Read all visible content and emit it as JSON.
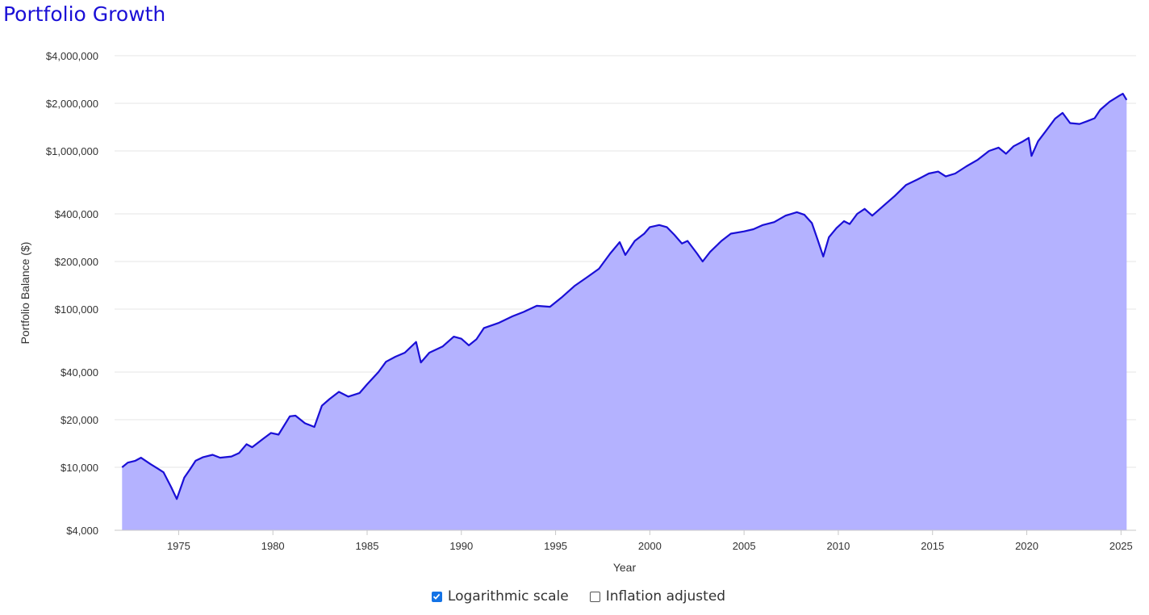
{
  "chart_data": {
    "type": "area",
    "title": "Portfolio Growth",
    "xlabel": "Year",
    "ylabel": "Portfolio Balance ($)",
    "y_scale": "log",
    "ylim": [
      4000,
      4000000
    ],
    "xlim": [
      1971.6,
      2025.8
    ],
    "grid": "horizontal",
    "x_ticks": [
      "1975",
      "1980",
      "1985",
      "1990",
      "1995",
      "2000",
      "2005",
      "2010",
      "2015",
      "2020",
      "2025"
    ],
    "y_ticks": [
      {
        "value": 4000000,
        "label": "$4,000,000"
      },
      {
        "value": 2000000,
        "label": "$2,000,000"
      },
      {
        "value": 1000000,
        "label": "$1,000,000"
      },
      {
        "value": 400000,
        "label": "$400,000"
      },
      {
        "value": 200000,
        "label": "$200,000"
      },
      {
        "value": 100000,
        "label": "$100,000"
      },
      {
        "value": 40000,
        "label": "$40,000"
      },
      {
        "value": 20000,
        "label": "$20,000"
      },
      {
        "value": 10000,
        "label": "$10,000"
      },
      {
        "value": 4000,
        "label": "$4,000"
      }
    ],
    "colors": {
      "line": "#1a0fd6",
      "fill": "#b4b2ff",
      "grid": "#e4e4e4"
    },
    "series": [
      {
        "x": [
          1972.0,
          1972.3,
          1972.7,
          1973.0,
          1973.5,
          1973.9,
          1974.2,
          1974.6,
          1974.9,
          1975.3,
          1975.6,
          1975.9,
          1976.3,
          1976.8,
          1977.2,
          1977.8,
          1978.2,
          1978.6,
          1978.9,
          1979.5,
          1979.9,
          1980.3,
          1980.9,
          1981.2,
          1981.7,
          1982.2,
          1982.6,
          1983.0,
          1983.5,
          1984.0,
          1984.6,
          1985.0,
          1985.6,
          1986.0,
          1986.5,
          1987.0,
          1987.6,
          1987.85,
          1988.3,
          1989.0,
          1989.6,
          1990.0,
          1990.4,
          1990.8,
          1991.2,
          1992.0,
          1992.7,
          1993.3,
          1994.0,
          1994.7,
          1995.3,
          1996.0,
          1996.7,
          1997.3,
          1997.9,
          1998.4,
          1998.7,
          1999.2,
          1999.7,
          2000.0,
          2000.5,
          2000.9,
          2001.3,
          2001.7,
          2002.0,
          2002.5,
          2002.8,
          2003.2,
          2003.8,
          2004.3,
          2005.0,
          2005.5,
          2006.0,
          2006.6,
          2007.2,
          2007.8,
          2008.2,
          2008.6,
          2008.9,
          2009.2,
          2009.5,
          2009.9,
          2010.3,
          2010.6,
          2011.0,
          2011.4,
          2011.8,
          2012.3,
          2013.0,
          2013.6,
          2014.2,
          2014.8,
          2015.3,
          2015.7,
          2016.2,
          2016.8,
          2017.4,
          2018.0,
          2018.5,
          2018.9,
          2019.3,
          2019.8,
          2020.1,
          2020.25,
          2020.6,
          2021.0,
          2021.5,
          2021.9,
          2022.3,
          2022.8,
          2023.2,
          2023.6,
          2023.9,
          2024.4,
          2024.9,
          2025.1,
          2025.3
        ],
        "y": [
          10000,
          10700,
          11000,
          11500,
          10500,
          9800,
          9300,
          7500,
          6300,
          8600,
          9700,
          11000,
          11600,
          12000,
          11500,
          11700,
          12300,
          14000,
          13400,
          15200,
          16500,
          16100,
          21000,
          21200,
          19000,
          18000,
          24500,
          27000,
          30000,
          28000,
          29500,
          33500,
          40000,
          46500,
          50000,
          53000,
          62000,
          46000,
          53000,
          58000,
          67000,
          65000,
          59000,
          64500,
          76000,
          82000,
          90000,
          96000,
          105000,
          103500,
          118000,
          140000,
          160000,
          180000,
          225000,
          265000,
          220000,
          270000,
          300000,
          330000,
          340000,
          330000,
          295000,
          260000,
          270000,
          225000,
          200000,
          230000,
          270000,
          300000,
          310000,
          320000,
          340000,
          355000,
          390000,
          410000,
          395000,
          350000,
          275000,
          215000,
          285000,
          325000,
          360000,
          345000,
          400000,
          430000,
          390000,
          440000,
          520000,
          610000,
          660000,
          720000,
          740000,
          690000,
          720000,
          800000,
          880000,
          1000000,
          1050000,
          960000,
          1070000,
          1150000,
          1210000,
          930000,
          1150000,
          1330000,
          1600000,
          1740000,
          1500000,
          1480000,
          1540000,
          1610000,
          1820000,
          2050000,
          2230000,
          2300000,
          2100000
        ]
      }
    ]
  },
  "controls": {
    "log_scale": {
      "label": "Logarithmic scale",
      "checked": true
    },
    "inflation": {
      "label": "Inflation adjusted",
      "checked": false
    }
  }
}
